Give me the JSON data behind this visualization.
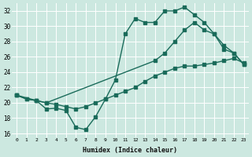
{
  "xlabel": "Humidex (Indice chaleur)",
  "bg_color": "#cce8e0",
  "line_color": "#1a6b5a",
  "grid_color": "#ffffff",
  "xlim": [
    -0.5,
    23.5
  ],
  "ylim": [
    15.5,
    33.0
  ],
  "yticks": [
    16,
    18,
    20,
    22,
    24,
    26,
    28,
    30,
    32
  ],
  "xticks": [
    0,
    1,
    2,
    3,
    4,
    5,
    6,
    7,
    8,
    9,
    10,
    11,
    12,
    13,
    14,
    15,
    16,
    17,
    18,
    19,
    20,
    21,
    22,
    23
  ],
  "line1_x": [
    0,
    1,
    2,
    3,
    4,
    5,
    6,
    7,
    8,
    9,
    10,
    11,
    12,
    13,
    14,
    15,
    16,
    17,
    18,
    19,
    20,
    21,
    22,
    23
  ],
  "line1_y": [
    21.0,
    20.5,
    20.3,
    19.2,
    19.3,
    19.0,
    16.8,
    16.5,
    18.2,
    20.5,
    23.0,
    29.0,
    31.0,
    30.5,
    30.5,
    32.0,
    32.0,
    32.5,
    31.5,
    30.5,
    29.0,
    27.5,
    26.5,
    25.0
  ],
  "line2_x": [
    0,
    2,
    3,
    14,
    15,
    16,
    17,
    18,
    19,
    20,
    21,
    22,
    23
  ],
  "line2_y": [
    21.0,
    20.3,
    20.0,
    25.5,
    26.5,
    28.0,
    29.5,
    30.5,
    29.5,
    29.0,
    27.0,
    26.5,
    25.0
  ],
  "line3_x": [
    0,
    1,
    2,
    3,
    4,
    5,
    6,
    7,
    8,
    9,
    10,
    11,
    12,
    13,
    14,
    15,
    16,
    17,
    18,
    19,
    20,
    21,
    22,
    23
  ],
  "line3_y": [
    21.0,
    20.5,
    20.3,
    20.0,
    19.8,
    19.5,
    19.2,
    19.5,
    20.0,
    20.5,
    21.0,
    21.5,
    22.0,
    22.8,
    23.5,
    24.0,
    24.5,
    24.8,
    24.8,
    25.0,
    25.2,
    25.5,
    25.8,
    25.2
  ],
  "markersize": 2.5,
  "linewidth": 1.0
}
